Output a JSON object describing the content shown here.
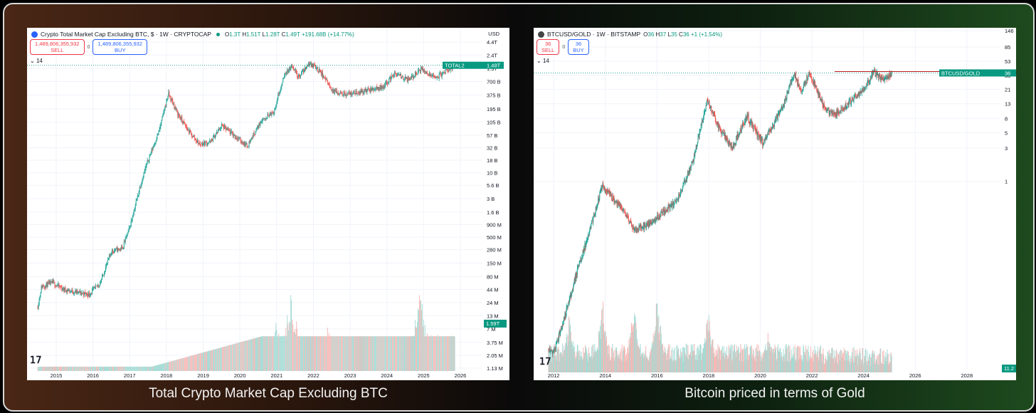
{
  "captions": {
    "left": "Total Crypto Market Cap Excluding BTC",
    "right": "Bitcoin priced in terms of Gold"
  },
  "colors": {
    "up": "#26a69a",
    "down": "#ef5350",
    "volume_up": "#9fd8d2",
    "volume_down": "#f5b2b0",
    "label_bg": "#089981"
  },
  "left_header": {
    "title": "Crypto Total Market Cap Excluding BTC, $ · 1W · CRYPTOCAP",
    "ohlc": [
      [
        "O",
        "1.3T"
      ],
      [
        "H",
        "1.51T"
      ],
      [
        "L",
        "1.28T"
      ],
      [
        "C",
        "1.49T"
      ]
    ],
    "change": "+191.68B (+14.77%)",
    "currency": "USD",
    "sell_price": "1,489,806,355,932",
    "sell_label": "SELL",
    "spread": "0",
    "buy_price": "1,489,806,355,932",
    "buy_label": "BUY",
    "indicator_count": "14",
    "price_tag_symbol": "TOTAL2",
    "price_tag_value": "1.49T",
    "volume_tag": "1.59T"
  },
  "right_header": {
    "title": "BTCUSD/GOLD · 1W · BITSTAMP",
    "ohlc": [
      [
        "O",
        "36"
      ],
      [
        "H",
        "37"
      ],
      [
        "L",
        "35"
      ],
      [
        "C",
        "36"
      ]
    ],
    "change": "+1 (+1.54%)",
    "sell_price": "36",
    "sell_label": "SELL",
    "spread": "0",
    "buy_price": "36",
    "buy_label": "BUY",
    "indicator_count": "14",
    "price_tag_symbol": "BTCUSD/GOLD",
    "price_tag_value": "36",
    "volume_tag": "11.2"
  },
  "chart_data": [
    {
      "type": "candlestick",
      "title": "Crypto Total Market Cap Excluding BTC, $ · 1W · CRYPTOCAP",
      "y_scale": "log",
      "y_ticks": [
        "4.4T",
        "2.4T",
        "1.3T",
        "700 B",
        "375 B",
        "195 B",
        "105 B",
        "57 B",
        "32 B",
        "18 B",
        "10 B",
        "5.6 B",
        "3 B",
        "1.6 B",
        "900 M",
        "500 M",
        "280 M",
        "150 M",
        "80 M",
        "44 M",
        "24 M",
        "13 M",
        "7 M",
        "3.75 M",
        "2.05 M",
        "1.13 M"
      ],
      "x_ticks": [
        "2015",
        "2016",
        "2017",
        "2018",
        "2019",
        "2020",
        "2021",
        "2022",
        "2023",
        "2024",
        "2025",
        "2026"
      ],
      "price_path": [
        {
          "x": 2014.5,
          "y": 20000000.0
        },
        {
          "x": 2014.6,
          "y": 50000000.0
        },
        {
          "x": 2014.9,
          "y": 60000000.0
        },
        {
          "x": 2015.2,
          "y": 44000000.0
        },
        {
          "x": 2015.6,
          "y": 38000000.0
        },
        {
          "x": 2015.9,
          "y": 35000000.0
        },
        {
          "x": 2016.2,
          "y": 60000000.0
        },
        {
          "x": 2016.5,
          "y": 260000000.0
        },
        {
          "x": 2016.8,
          "y": 300000000.0
        },
        {
          "x": 2017.0,
          "y": 800000000.0
        },
        {
          "x": 2017.3,
          "y": 6000000000.0
        },
        {
          "x": 2017.5,
          "y": 18000000000.0
        },
        {
          "x": 2017.8,
          "y": 70000000000.0
        },
        {
          "x": 2018.05,
          "y": 400000000000.0
        },
        {
          "x": 2018.3,
          "y": 160000000000.0
        },
        {
          "x": 2018.6,
          "y": 70000000000.0
        },
        {
          "x": 2018.9,
          "y": 38000000000.0
        },
        {
          "x": 2019.2,
          "y": 42000000000.0
        },
        {
          "x": 2019.5,
          "y": 90000000000.0
        },
        {
          "x": 2019.8,
          "y": 60000000000.0
        },
        {
          "x": 2020.2,
          "y": 35000000000.0
        },
        {
          "x": 2020.6,
          "y": 120000000000.0
        },
        {
          "x": 2020.9,
          "y": 160000000000.0
        },
        {
          "x": 2021.2,
          "y": 900000000000.0
        },
        {
          "x": 2021.4,
          "y": 1400000000000.0
        },
        {
          "x": 2021.6,
          "y": 900000000000.0
        },
        {
          "x": 2021.9,
          "y": 1600000000000.0
        },
        {
          "x": 2022.2,
          "y": 1100000000000.0
        },
        {
          "x": 2022.5,
          "y": 450000000000.0
        },
        {
          "x": 2022.9,
          "y": 390000000000.0
        },
        {
          "x": 2023.4,
          "y": 450000000000.0
        },
        {
          "x": 2023.9,
          "y": 550000000000.0
        },
        {
          "x": 2024.2,
          "y": 1000000000000.0
        },
        {
          "x": 2024.6,
          "y": 750000000000.0
        },
        {
          "x": 2024.95,
          "y": 1300000000000.0
        },
        {
          "x": 2025.3,
          "y": 800000000000.0
        },
        {
          "x": 2025.6,
          "y": 1100000000000.0
        },
        {
          "x": 2025.85,
          "y": 1490000000000.0
        }
      ],
      "volume_peaks": [
        {
          "x": 2021.0,
          "v": 0.6
        },
        {
          "x": 2021.4,
          "v": 0.95
        },
        {
          "x": 2022.4,
          "v": 0.55
        },
        {
          "x": 2024.9,
          "v": 1.0
        },
        {
          "x": 2025.3,
          "v": 0.55
        },
        {
          "x": 2025.8,
          "v": 0.45
        }
      ]
    },
    {
      "type": "candlestick",
      "title": "BTCUSD/GOLD · 1W · BITSTAMP",
      "y_scale": "log",
      "y_ticks": [
        "146",
        "85",
        "53",
        "33",
        "21",
        "13",
        "8",
        "5",
        "3",
        "1"
      ],
      "x_ticks": [
        "2012",
        "2014",
        "2016",
        "2018",
        "2020",
        "2022",
        "2024",
        "2026",
        "2028"
      ],
      "resistance_level": 36,
      "price_path": [
        {
          "x": 2011.8,
          "y": 0.004
        },
        {
          "x": 2012.0,
          "y": 0.0035
        },
        {
          "x": 2012.4,
          "y": 0.01
        },
        {
          "x": 2012.9,
          "y": 0.05
        },
        {
          "x": 2013.3,
          "y": 0.15
        },
        {
          "x": 2013.9,
          "y": 0.9
        },
        {
          "x": 2014.3,
          "y": 0.55
        },
        {
          "x": 2014.8,
          "y": 0.33
        },
        {
          "x": 2015.1,
          "y": 0.2
        },
        {
          "x": 2015.6,
          "y": 0.23
        },
        {
          "x": 2016.2,
          "y": 0.35
        },
        {
          "x": 2016.8,
          "y": 0.55
        },
        {
          "x": 2017.4,
          "y": 2.0
        },
        {
          "x": 2017.95,
          "y": 15.0
        },
        {
          "x": 2018.4,
          "y": 6.0
        },
        {
          "x": 2018.9,
          "y": 3.0
        },
        {
          "x": 2019.5,
          "y": 8.5
        },
        {
          "x": 2020.1,
          "y": 3.5
        },
        {
          "x": 2020.9,
          "y": 12.0
        },
        {
          "x": 2021.3,
          "y": 36.0
        },
        {
          "x": 2021.6,
          "y": 19.0
        },
        {
          "x": 2021.9,
          "y": 37.0
        },
        {
          "x": 2022.5,
          "y": 11.0
        },
        {
          "x": 2022.9,
          "y": 9.0
        },
        {
          "x": 2023.5,
          "y": 14.0
        },
        {
          "x": 2024.0,
          "y": 21.0
        },
        {
          "x": 2024.4,
          "y": 37.0
        },
        {
          "x": 2024.8,
          "y": 27.0
        },
        {
          "x": 2025.1,
          "y": 36.0
        }
      ],
      "volume_peaks": [
        {
          "x": 2012.6,
          "v": 0.7
        },
        {
          "x": 2013.9,
          "v": 0.9
        },
        {
          "x": 2015.1,
          "v": 0.85
        },
        {
          "x": 2016.0,
          "v": 0.95
        },
        {
          "x": 2018.0,
          "v": 0.75
        },
        {
          "x": 2020.3,
          "v": 0.5
        }
      ]
    }
  ]
}
